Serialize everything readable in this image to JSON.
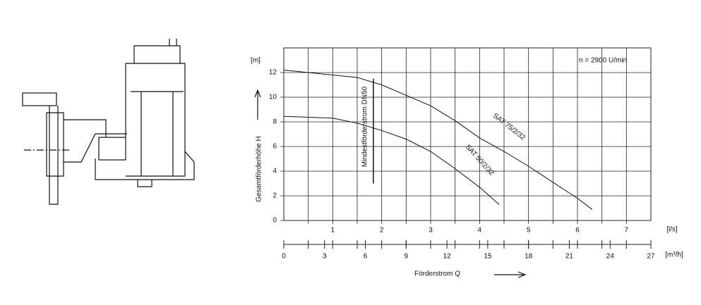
{
  "chart_data": {
    "type": "line",
    "annotation": "n = 2900 U/min",
    "y_unit": "[m]",
    "x_unit": "[l/s]",
    "x2_unit": "[m³/h]",
    "ylabel": "Gesamtförderhöhe H",
    "xlabel": "Förderstrom Q",
    "min_flow_label": "Mindestförderstrom DN50",
    "min_flow_x": 1.83,
    "xlim": [
      0,
      7.5
    ],
    "xticks": [
      1,
      2,
      3,
      4,
      5,
      6,
      7
    ],
    "xgrid": [
      0.5,
      1,
      1.5,
      2,
      2.5,
      3,
      3.5,
      4,
      4.5,
      5,
      5.5,
      6,
      6.5,
      7
    ],
    "x2lim": [
      0,
      27
    ],
    "x2ticks": [
      0,
      3,
      6,
      9,
      12,
      15,
      18,
      21,
      24,
      27
    ],
    "ylim": [
      0,
      14
    ],
    "yticks": [
      0,
      2,
      4,
      6,
      8,
      10,
      12
    ],
    "grid": true,
    "series": [
      {
        "name": "SAT 75/2/32",
        "color": "#111111",
        "x": [
          0,
          1.5,
          2,
          3,
          3.5,
          4,
          4.5,
          5,
          5.5,
          6,
          6.3
        ],
        "values": [
          12.2,
          11.6,
          11.0,
          9.3,
          8.1,
          6.7,
          5.6,
          4.4,
          3.1,
          1.8,
          0.9
        ]
      },
      {
        "name": "SAT 50/2/32",
        "color": "#111111",
        "x": [
          0,
          1,
          1.5,
          2,
          2.5,
          3,
          3.5,
          4,
          4.4
        ],
        "values": [
          8.45,
          8.3,
          7.9,
          7.3,
          6.6,
          5.6,
          4.2,
          2.7,
          1.3
        ]
      }
    ]
  }
}
